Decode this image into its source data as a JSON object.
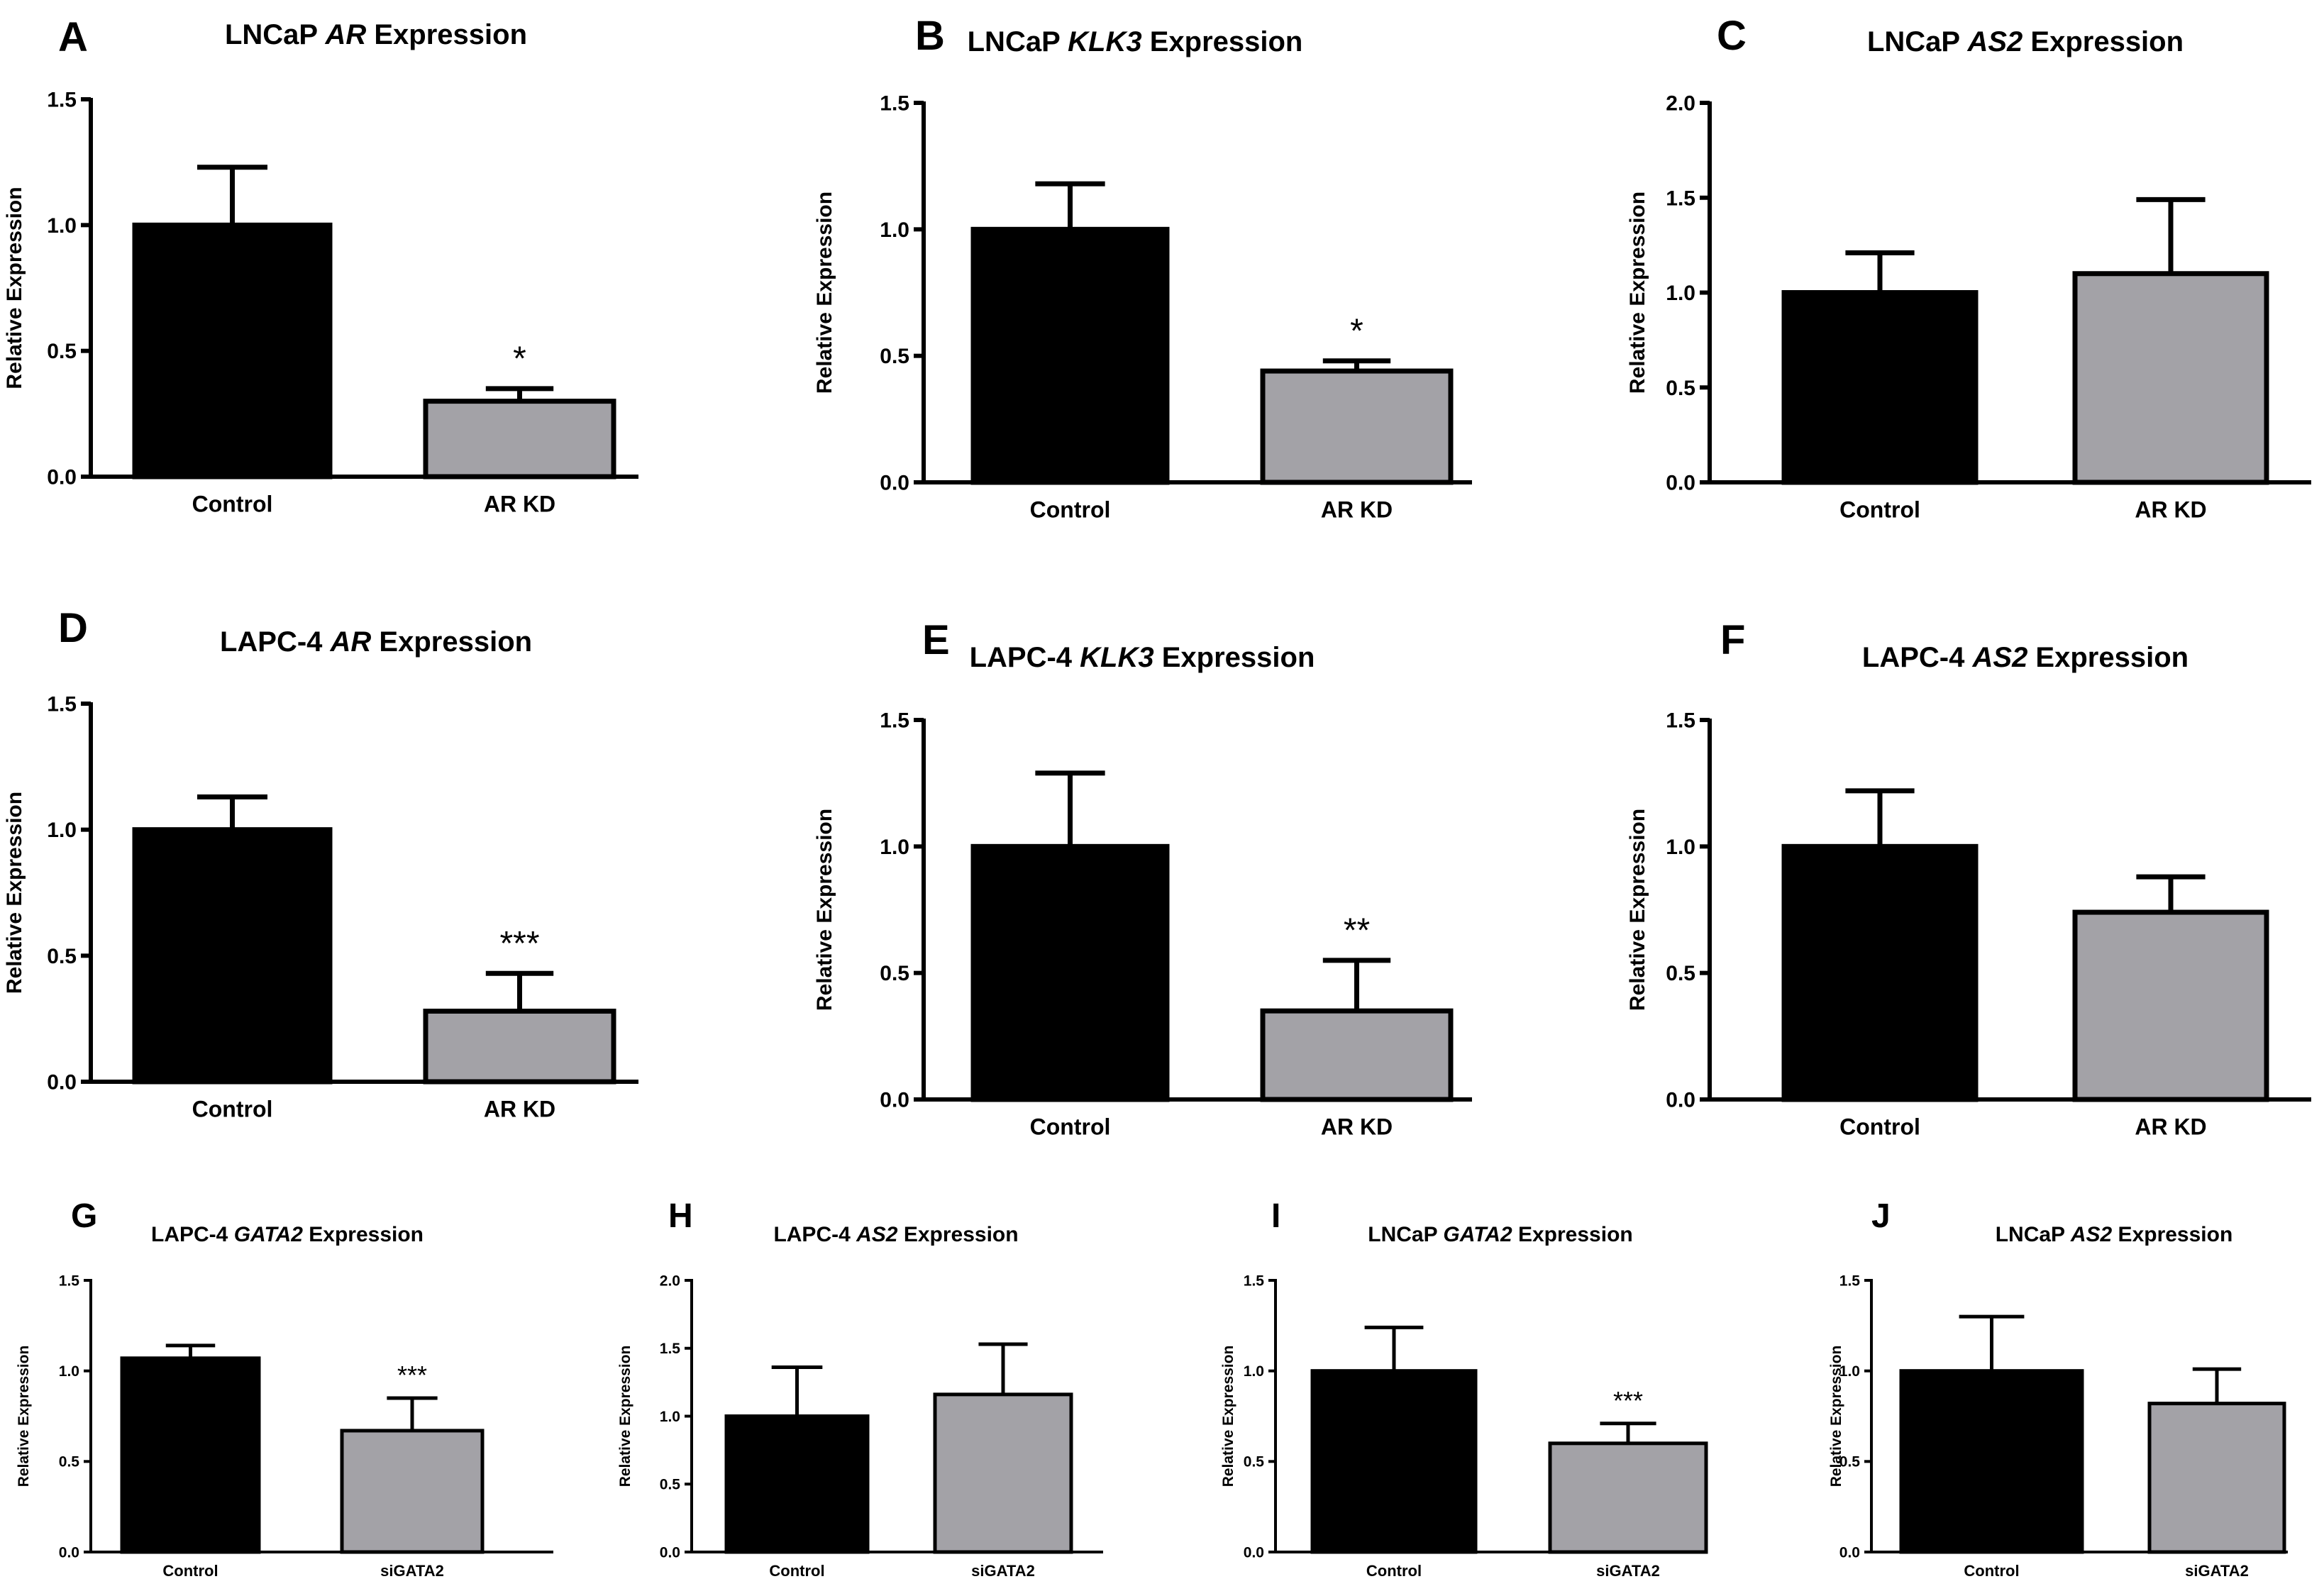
{
  "figure": {
    "background": "#ffffff",
    "series_colors": {
      "Control": "#000000",
      "Treatment": "#a3a2a7"
    }
  },
  "chart_data": [
    {
      "panel": "A",
      "type": "bar",
      "title_parts": [
        "LNCaP ",
        "AR",
        " Expression"
      ],
      "ylabel": "Relative Expression",
      "categories": [
        "Control",
        "AR KD"
      ],
      "values": [
        1.0,
        0.3
      ],
      "errors": [
        0.23,
        0.05
      ],
      "significance": [
        "",
        "*"
      ],
      "ylim": [
        0,
        1.5
      ],
      "yticks": [
        "0.0",
        "0.5",
        "1.0",
        "1.5"
      ],
      "ytick_values": [
        0,
        0.5,
        1.0,
        1.5
      ]
    },
    {
      "panel": "B",
      "type": "bar",
      "title_parts": [
        "LNCaP ",
        "KLK3",
        " Expression"
      ],
      "ylabel": "Relative Expression",
      "categories": [
        "Control",
        "AR KD"
      ],
      "values": [
        1.0,
        0.44
      ],
      "errors": [
        0.18,
        0.04
      ],
      "significance": [
        "",
        "*"
      ],
      "ylim": [
        0,
        1.5
      ],
      "yticks": [
        "0.0",
        "0.5",
        "1.0",
        "1.5"
      ],
      "ytick_values": [
        0,
        0.5,
        1.0,
        1.5
      ]
    },
    {
      "panel": "C",
      "type": "bar",
      "title_parts": [
        "LNCaP ",
        "AS2",
        " Expression"
      ],
      "ylabel": "Relative Expression",
      "categories": [
        "Control",
        "AR KD"
      ],
      "values": [
        1.0,
        1.1
      ],
      "errors": [
        0.21,
        0.39
      ],
      "significance": [
        "",
        ""
      ],
      "ylim": [
        0,
        2.0
      ],
      "yticks": [
        "0.0",
        "0.5",
        "1.0",
        "1.5",
        "2.0"
      ],
      "ytick_values": [
        0,
        0.5,
        1.0,
        1.5,
        2.0
      ]
    },
    {
      "panel": "D",
      "type": "bar",
      "title_parts": [
        "LAPC-4 ",
        "AR",
        " Expression"
      ],
      "ylabel": "Relative Expression",
      "categories": [
        "Control",
        "AR KD"
      ],
      "values": [
        1.0,
        0.28
      ],
      "errors": [
        0.13,
        0.15
      ],
      "significance": [
        "",
        "***"
      ],
      "ylim": [
        0,
        1.5
      ],
      "yticks": [
        "0.0",
        "0.5",
        "1.0",
        "1.5"
      ],
      "ytick_values": [
        0,
        0.5,
        1.0,
        1.5
      ]
    },
    {
      "panel": "E",
      "type": "bar",
      "title_parts": [
        "LAPC-4 ",
        "KLK3",
        " Expression"
      ],
      "ylabel": "Relative Expression",
      "categories": [
        "Control",
        "AR KD"
      ],
      "values": [
        1.0,
        0.35
      ],
      "errors": [
        0.29,
        0.2
      ],
      "significance": [
        "",
        "**"
      ],
      "ylim": [
        0,
        1.5
      ],
      "yticks": [
        "0.0",
        "0.5",
        "1.0",
        "1.5"
      ],
      "ytick_values": [
        0,
        0.5,
        1.0,
        1.5
      ]
    },
    {
      "panel": "F",
      "type": "bar",
      "title_parts": [
        "LAPC-4 ",
        "AS2",
        " Expression"
      ],
      "ylabel": "Relative Expression",
      "categories": [
        "Control",
        "AR KD"
      ],
      "values": [
        1.0,
        0.74
      ],
      "errors": [
        0.22,
        0.14
      ],
      "significance": [
        "",
        ""
      ],
      "ylim": [
        0,
        1.5
      ],
      "yticks": [
        "0.0",
        "0.5",
        "1.0",
        "1.5"
      ],
      "ytick_values": [
        0,
        0.5,
        1.0,
        1.5
      ]
    },
    {
      "panel": "G",
      "type": "bar",
      "title_parts": [
        "LAPC-4 ",
        "GATA2",
        " Expression"
      ],
      "ylabel": "Relative Expression",
      "categories": [
        "Control",
        "siGATA2"
      ],
      "values": [
        1.07,
        0.67
      ],
      "errors": [
        0.07,
        0.18
      ],
      "significance": [
        "",
        "***"
      ],
      "ylim": [
        0,
        1.5
      ],
      "yticks": [
        "0.0",
        "0.5",
        "1.0",
        "1.5"
      ],
      "ytick_values": [
        0,
        0.5,
        1.0,
        1.5
      ]
    },
    {
      "panel": "H",
      "type": "bar",
      "title_parts": [
        "LAPC-4 ",
        "AS2",
        " Expression"
      ],
      "ylabel": "Relative Expression",
      "categories": [
        "Control",
        "siGATA2"
      ],
      "values": [
        1.0,
        1.16
      ],
      "errors": [
        0.36,
        0.37
      ],
      "significance": [
        "",
        ""
      ],
      "ylim": [
        0,
        2.0
      ],
      "yticks": [
        "0.0",
        "0.5",
        "1.0",
        "1.5",
        "2.0"
      ],
      "ytick_values": [
        0,
        0.5,
        1.0,
        1.5,
        2.0
      ]
    },
    {
      "panel": "I",
      "type": "bar",
      "title_parts": [
        "LNCaP ",
        "GATA2",
        " Expression"
      ],
      "ylabel": "Relative Expression",
      "categories": [
        "Control",
        "siGATA2"
      ],
      "values": [
        1.0,
        0.6
      ],
      "errors": [
        0.24,
        0.11
      ],
      "significance": [
        "",
        "***"
      ],
      "ylim": [
        0,
        1.5
      ],
      "yticks": [
        "0.0",
        "0.5",
        "1.0",
        "1.5"
      ],
      "ytick_values": [
        0,
        0.5,
        1.0,
        1.5
      ]
    },
    {
      "panel": "J",
      "type": "bar",
      "title_parts": [
        "LNCaP ",
        "AS2",
        " Expression"
      ],
      "ylabel": "Relative Expression",
      "categories": [
        "Control",
        "siGATA2"
      ],
      "values": [
        1.0,
        0.82
      ],
      "errors": [
        0.3,
        0.19
      ],
      "significance": [
        "",
        ""
      ],
      "ylim": [
        0,
        1.5
      ],
      "yticks": [
        "0.0",
        "0.5",
        "1.0",
        "1.5"
      ],
      "ytick_values": [
        0,
        0.5,
        1.0,
        1.5
      ]
    }
  ]
}
